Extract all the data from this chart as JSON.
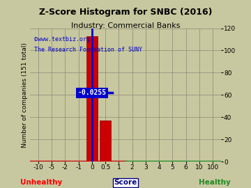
{
  "title": "Z-Score Histogram for SNBC (2016)",
  "subtitle": "Industry: Commercial Banks",
  "watermark1": "©www.textbiz.org",
  "watermark2": "The Research Foundation of SUNY",
  "ylabel": "Number of companies (151 total)",
  "xlabel_center": "Score",
  "xlabel_left": "Unhealthy",
  "xlabel_right": "Healthy",
  "snbc_value_label": "-0.0255",
  "bar_color_red": "#cc0000",
  "bar_color_green": "#228b22",
  "snbc_line_color": "#0000cc",
  "annotation_text_color": "#ffffff",
  "background_color": "#c8c8a0",
  "plot_bg_color": "#c8c8a0",
  "grid_color": "#888877",
  "ylim": [
    0,
    120
  ],
  "yticks": [
    0,
    20,
    40,
    60,
    80,
    100,
    120
  ],
  "xtick_labels": [
    "-10",
    "-5",
    "-2",
    "-1",
    "0",
    "0.5",
    "1",
    "2",
    "3",
    "4",
    "5",
    "6",
    "10",
    "100"
  ],
  "bar_heights": [
    0,
    0,
    1,
    0,
    113,
    37,
    0,
    0,
    0,
    0,
    0,
    0,
    0,
    0
  ],
  "title_fontsize": 9,
  "subtitle_fontsize": 8,
  "label_fontsize": 6.5,
  "tick_fontsize": 6.5
}
